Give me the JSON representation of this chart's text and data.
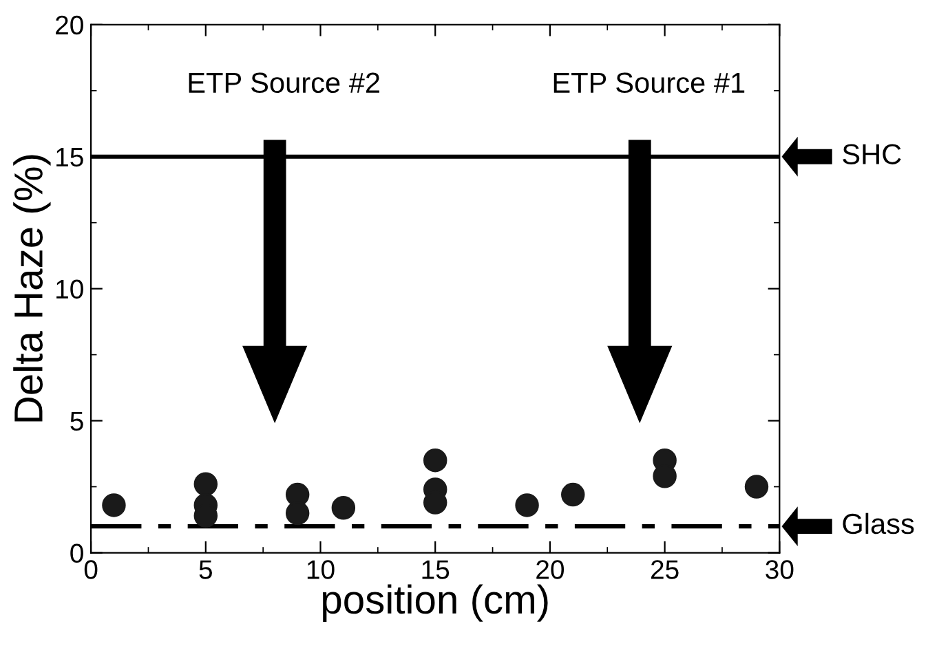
{
  "chart_data": {
    "type": "scatter",
    "xlabel": "position (cm)",
    "ylabel": "Delta Haze (%)",
    "xlim": [
      0,
      30
    ],
    "ylim": [
      0,
      20
    ],
    "xticks": [
      0,
      5,
      10,
      15,
      20,
      25,
      30
    ],
    "yticks": [
      0,
      5,
      10,
      15,
      20
    ],
    "marker": "circle",
    "grid": false,
    "legend": false,
    "series": [
      {
        "color": "#1a1a1a",
        "x": [
          1,
          5,
          5,
          5,
          9,
          9,
          11,
          15,
          15,
          15,
          19,
          21,
          25,
          25,
          29
        ],
        "values": [
          1.8,
          2.6,
          1.8,
          1.4,
          2.2,
          1.5,
          1.7,
          3.5,
          2.4,
          1.9,
          1.8,
          2.2,
          3.5,
          2.9,
          2.5
        ]
      }
    ],
    "ref_lines": [
      {
        "axis": "y",
        "value": 15,
        "label": "SHC",
        "color": "#000000",
        "line_style": "solid"
      },
      {
        "axis": "y",
        "value": 1,
        "label": "Glass",
        "color": "#000000",
        "line_style": "dashdot"
      }
    ],
    "annotations": [
      "ETP Source #2",
      "ETP Source #1"
    ]
  }
}
